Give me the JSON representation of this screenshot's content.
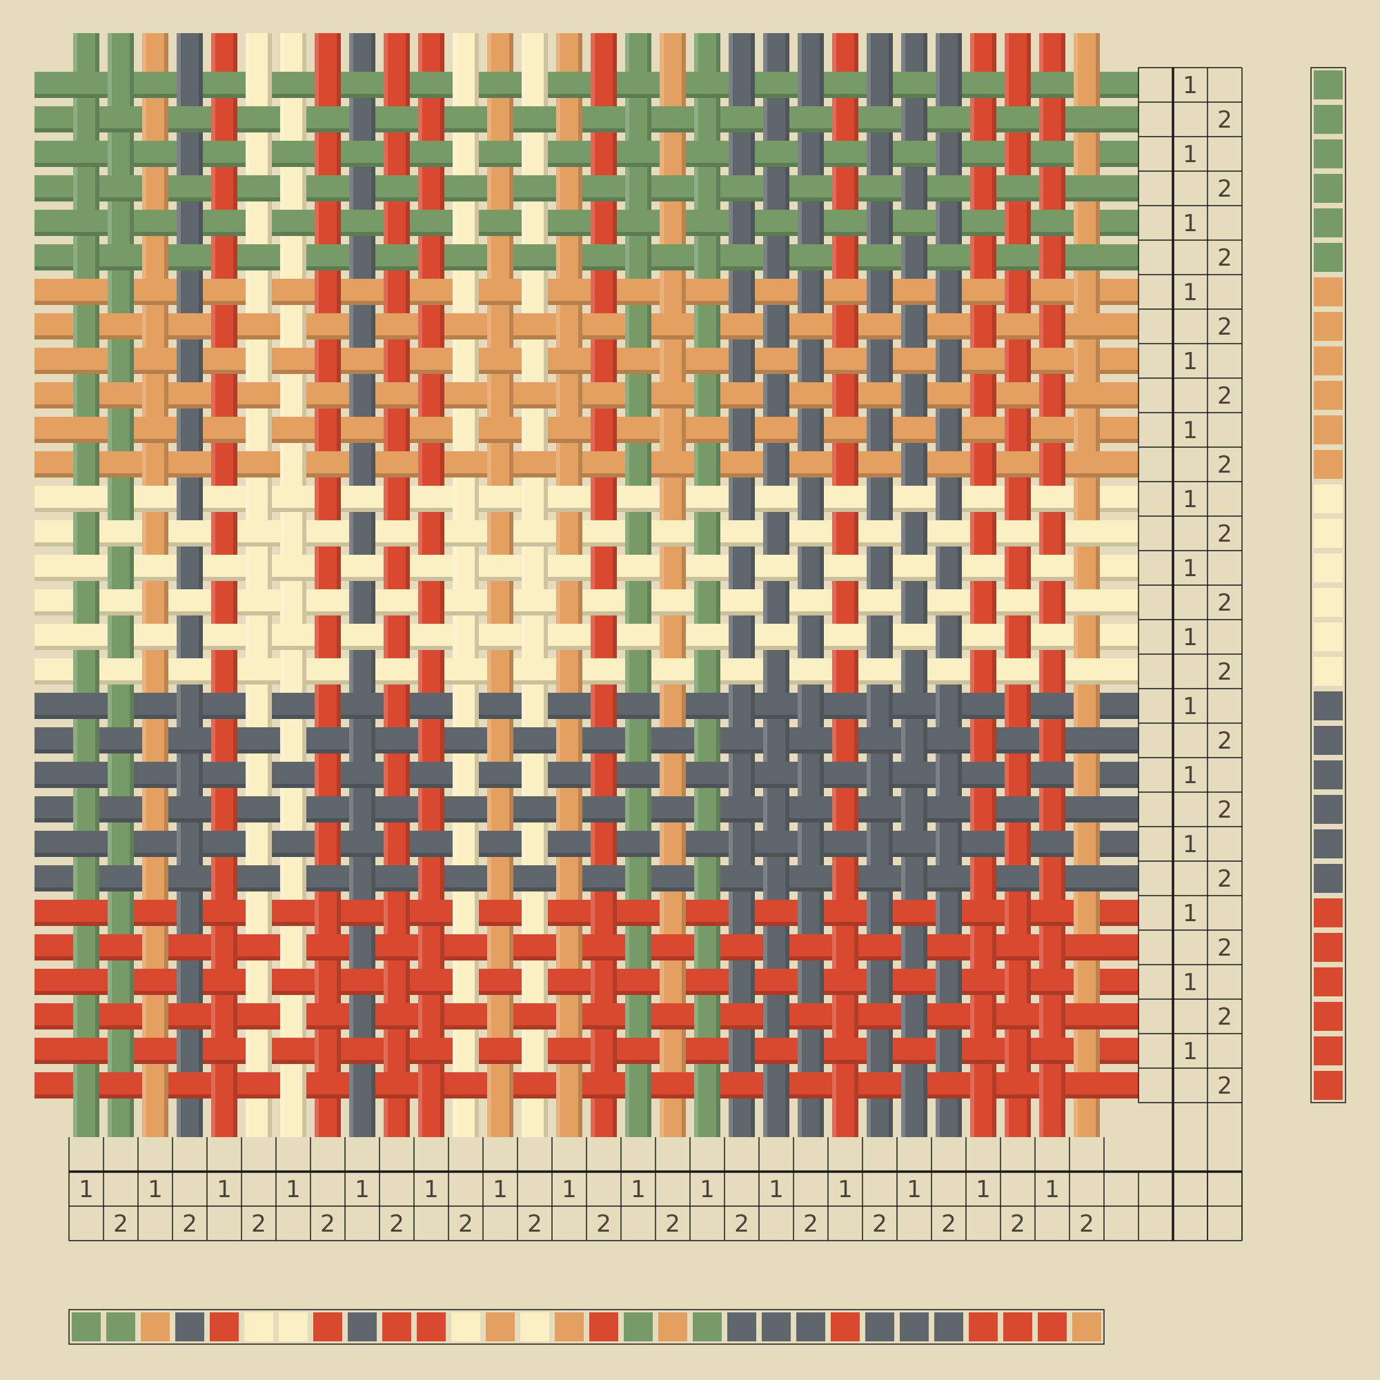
{
  "palette": {
    "G": "#769b66",
    "O": "#e3a061",
    "Y": "#fbf0c3",
    "S": "#5f666b",
    "R": "#d84930"
  },
  "palette_names": {
    "G": "green",
    "O": "orange",
    "Y": "cream",
    "S": "slate",
    "R": "red"
  },
  "background": "#e4dcbd",
  "grid_line_color": "#1a1a1a",
  "weave": "plain",
  "warp_colors": [
    "G",
    "G",
    "O",
    "S",
    "R",
    "Y",
    "Y",
    "R",
    "S",
    "R",
    "R",
    "Y",
    "O",
    "Y",
    "O",
    "R",
    "G",
    "O",
    "G",
    "S",
    "S",
    "S",
    "R",
    "S",
    "S",
    "S",
    "R",
    "R",
    "R",
    "O"
  ],
  "weft_colors": [
    "G",
    "G",
    "G",
    "G",
    "G",
    "G",
    "O",
    "O",
    "O",
    "O",
    "O",
    "O",
    "Y",
    "Y",
    "Y",
    "Y",
    "Y",
    "Y",
    "S",
    "S",
    "S",
    "S",
    "S",
    "S",
    "R",
    "R",
    "R",
    "R",
    "R",
    "R"
  ],
  "threading": [
    "1",
    "2",
    "1",
    "2",
    "1",
    "2",
    "1",
    "2",
    "1",
    "2",
    "1",
    "2",
    "1",
    "2",
    "1",
    "2",
    "1",
    "2",
    "1",
    "2",
    "1",
    "2",
    "1",
    "2",
    "1",
    "2",
    "1",
    "2",
    "1",
    "2"
  ],
  "treadling": [
    "1",
    "2",
    "1",
    "2",
    "1",
    "2",
    "1",
    "2",
    "1",
    "2",
    "1",
    "2",
    "1",
    "2",
    "1",
    "2",
    "1",
    "2",
    "1",
    "2",
    "1",
    "2",
    "1",
    "2",
    "1",
    "2",
    "1",
    "2",
    "1",
    "2"
  ]
}
